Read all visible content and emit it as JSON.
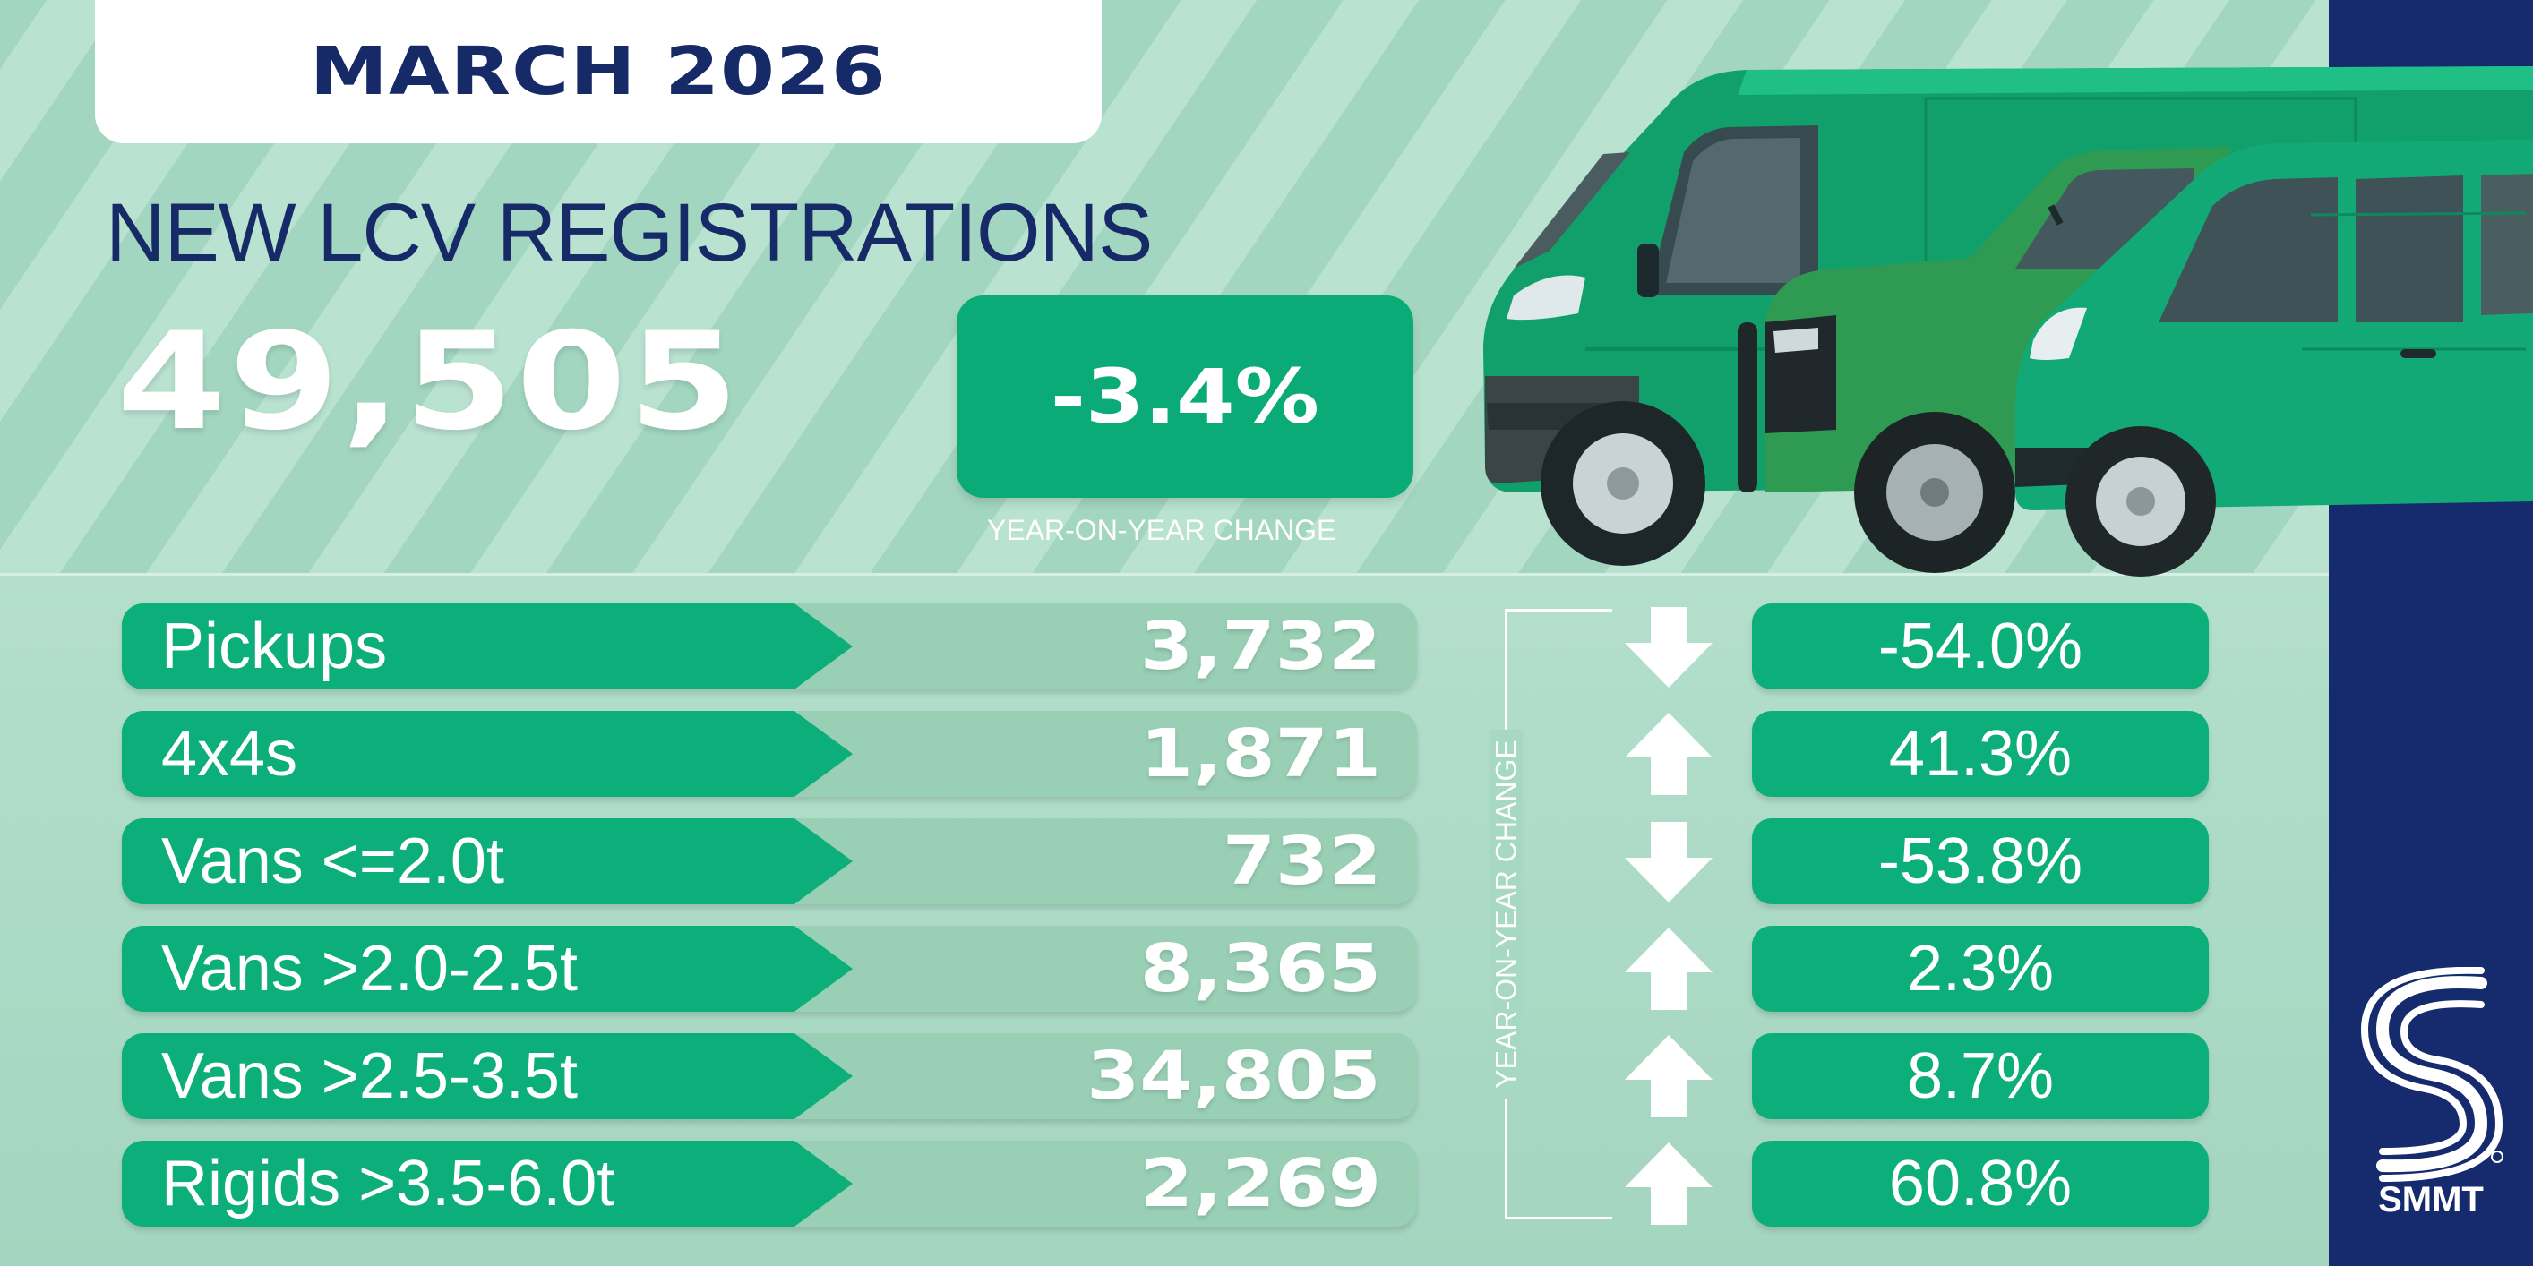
{
  "header": {
    "month": "MARCH 2026",
    "title": "NEW LCV REGISTRATIONS"
  },
  "total": {
    "value": "49,505",
    "change": "-3.4%",
    "change_caption": "YEAR-ON-YEAR CHANGE"
  },
  "rows": [
    {
      "label": "Pickups",
      "value": "3,732",
      "direction": "down",
      "change": "-54.0%"
    },
    {
      "label": "4x4s",
      "value": "1,871",
      "direction": "up",
      "change": "41.3%"
    },
    {
      "label": "Vans <=2.0t",
      "value": "732",
      "direction": "down",
      "change": "-53.8%"
    },
    {
      "label": "Vans >2.0-2.5t",
      "value": "8,365",
      "direction": "up",
      "change": "2.3%"
    },
    {
      "label": "Vans >2.5-3.5t",
      "value": "34,805",
      "direction": "up",
      "change": "8.7%"
    },
    {
      "label": "Rigids >3.5-6.0t",
      "value": "2,269",
      "direction": "up",
      "change": "60.8%"
    }
  ],
  "side_label": "YEAR-ON-YEAR CHANGE",
  "brand": {
    "name": "SMMT"
  },
  "colors": {
    "navy": "#172a68",
    "green": "#0cae7a",
    "mint": "#a7d8c3"
  }
}
